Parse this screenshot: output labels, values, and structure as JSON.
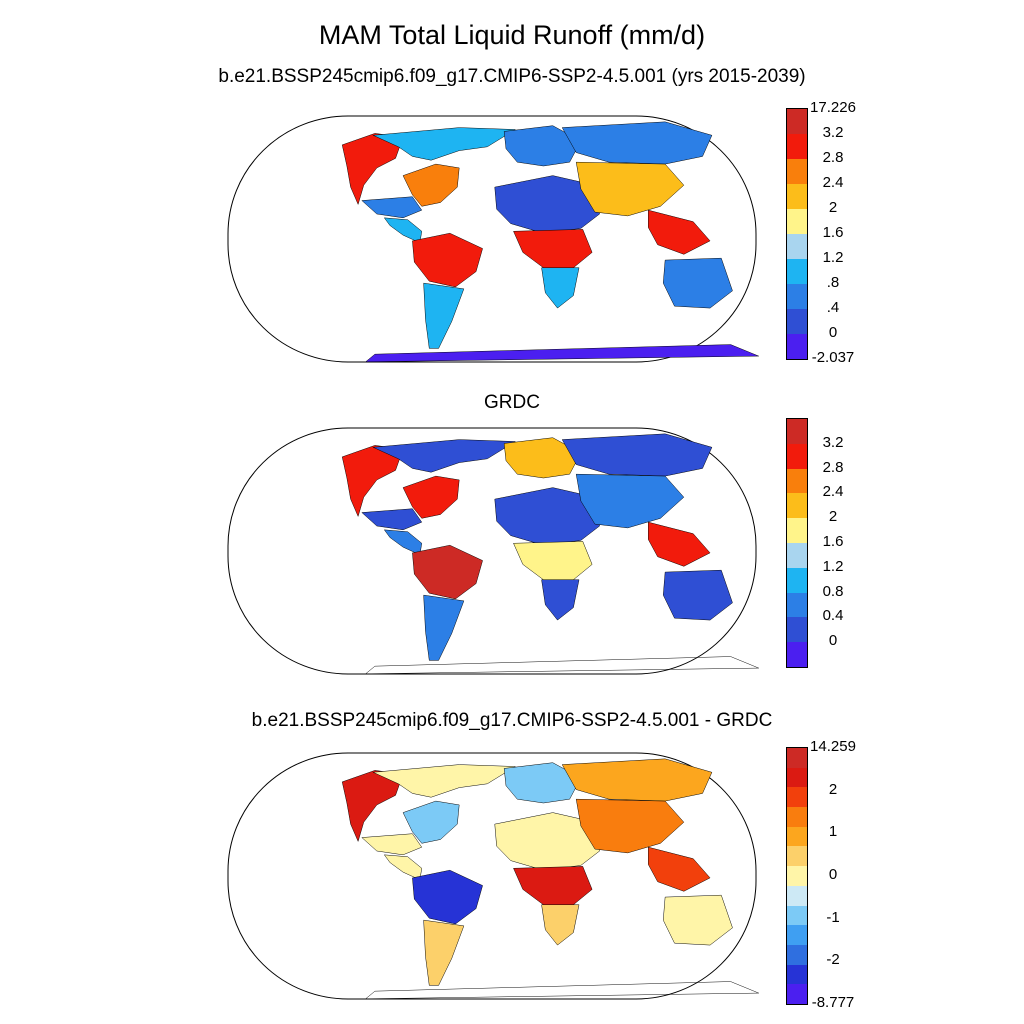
{
  "main_title": "MAM Total Liquid Runoff (mm/d)",
  "panels": [
    {
      "title": "b.e21.BSSP245cmip6.f09_g17.CMIP6-SSP2-4.5.001 (yrs 2015-2039)",
      "colors": [
        "#4b1ff0",
        "#2f4fd4",
        "#2c7fe6",
        "#1eb4f2",
        "#a9d5ef",
        "#fff48a",
        "#fcbd1a",
        "#f97f0c",
        "#f21b0c",
        "#cd2a25"
      ],
      "labels": [
        "-2.037",
        "0",
        ".4",
        ".8",
        "1.2",
        "1.6",
        "2",
        "2.4",
        "2.8",
        "3.2",
        "17.226"
      ],
      "region_levels": {
        "na_west": 8,
        "na_north": 3,
        "na_east": 7,
        "na_south": 2,
        "central_america": 3,
        "amazon": 8,
        "sa_south": 3,
        "africa_north": 1,
        "africa_central": 8,
        "africa_south": 3,
        "europe": 2,
        "siberia": 2,
        "asia_south": 6,
        "se_asia": 8,
        "australia": 2,
        "antarctica": 0
      }
    },
    {
      "title": "GRDC",
      "colors": [
        "#4b1ff0",
        "#2f4fd4",
        "#2c7fe6",
        "#1eb4f2",
        "#a9d5ef",
        "#fff48a",
        "#fcbd1a",
        "#f97f0c",
        "#f21b0c",
        "#cd2a25"
      ],
      "labels": [
        "0",
        "0.4",
        "0.8",
        "1.2",
        "1.6",
        "2",
        "2.4",
        "2.8",
        "3.2"
      ],
      "region_levels": {
        "na_west": 8,
        "na_north": 1,
        "na_east": 8,
        "na_south": 1,
        "central_america": 2,
        "amazon": 9,
        "sa_south": 2,
        "africa_north": 1,
        "africa_central": 5,
        "africa_south": 1,
        "europe": 6,
        "siberia": 1,
        "asia_south": 2,
        "se_asia": 8,
        "australia": 1,
        "antarctica": -1
      }
    },
    {
      "title": "b.e21.BSSP245cmip6.f09_g17.CMIP6-SSP2-4.5.001 - GRDC",
      "colors": [
        "#4b1ff0",
        "#2633d6",
        "#2f6fe0",
        "#3f9ff2",
        "#7ccaf6",
        "#cde9f5",
        "#fff5a8",
        "#fcd06a",
        "#fca61e",
        "#f97d0e",
        "#f2400c",
        "#db1a12",
        "#cd2a25"
      ],
      "labels": [
        "-8.777",
        "-2",
        "-1",
        "0",
        "1",
        "2",
        "14.259"
      ],
      "region_levels": {
        "na_west": 11,
        "na_north": 6,
        "na_east": 4,
        "na_south": 6,
        "central_america": 6,
        "amazon": 1,
        "sa_south": 7,
        "africa_north": 6,
        "africa_central": 11,
        "africa_south": 7,
        "europe": 4,
        "siberia": 8,
        "asia_south": 9,
        "se_asia": 10,
        "australia": 6,
        "antarctica": -1
      }
    }
  ]
}
